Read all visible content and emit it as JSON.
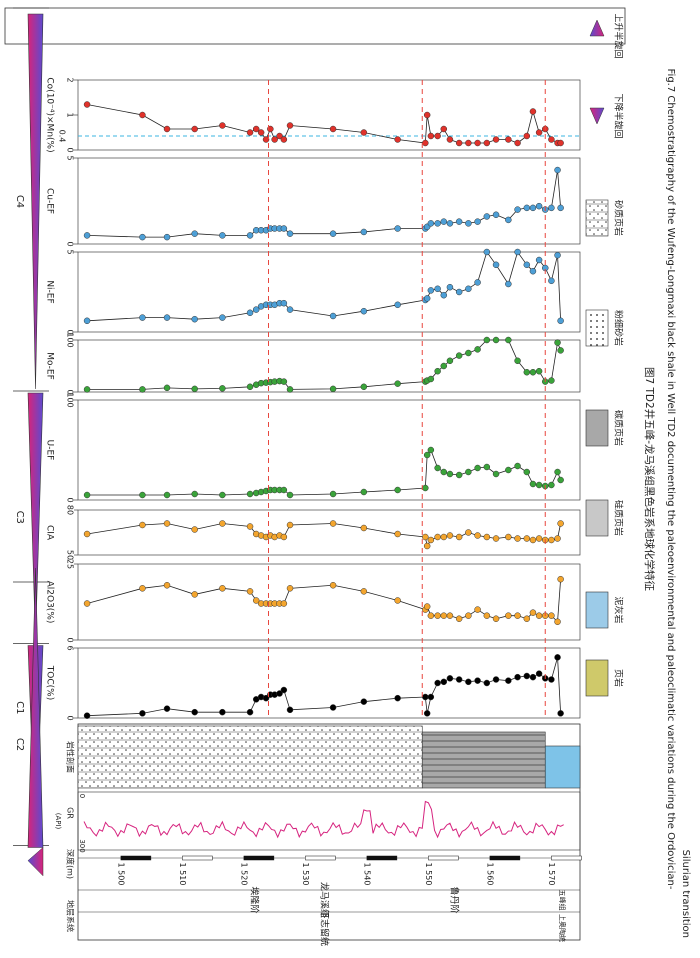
{
  "figure": {
    "caption_cn": "图7 TD2井五峰-龙马溪组黑色岩系地球化学特征",
    "caption_en_line1": "Fig.7 Chemostratigraphy of the Wufeng-Longmaxi black shale in Well TD2 documenting the paleoenvironmental and paleoclimatic variations during the Ordovician-",
    "caption_en_line2": "Silurian transition"
  },
  "strat_header": {
    "system": "地层系统",
    "depth": "深度(m)",
    "gr": "GR",
    "gr_unit": "(API)",
    "gr_range": [
      "0",
      "300"
    ],
    "lithology": "岩性剖面"
  },
  "strat_units": {
    "series": "下志留统",
    "stage1": "埃隆阶",
    "stage2": "鲁丹阶",
    "formation": "龙马溪组",
    "upper_ord": "上奥陶统",
    "hirnantian": "赫南特阶",
    "katian": "凯迪阶",
    "guanyinqiao": "观音桥段",
    "wufeng": "五峰组",
    "linxiang": "临湘组"
  },
  "cycles": {
    "labels": [
      "C4",
      "C3",
      "C2",
      "C1"
    ],
    "legend_down": "下降半旋回",
    "legend_up": "上升半旋回"
  },
  "legend": [
    "页岩",
    "泥灰岩",
    "硅质页岩",
    "碳质页岩",
    "粉细砂岩",
    "砂质页岩"
  ],
  "chart_data": {
    "type": "line",
    "orientation": "depth-profile",
    "depth_ticks": [
      1500,
      1510,
      1520,
      1530,
      1540,
      1550,
      1560,
      1570
    ],
    "depth_tick_labels": [
      "1 500",
      "1 510",
      "1 520",
      "1 530",
      "1 540",
      "1 550",
      "1 560",
      "1 570"
    ],
    "depth_unit": "m",
    "boundaries": [
      1524,
      1549,
      1569
    ],
    "gr_range": [
      0,
      300
    ],
    "depth": [
      1494.5,
      1503.5,
      1507.5,
      1512.0,
      1516.5,
      1521.0,
      1522.0,
      1522.8,
      1523.6,
      1524.3,
      1525.0,
      1525.8,
      1526.5,
      1527.5,
      1534.5,
      1539.5,
      1545.0,
      1549.5,
      1549.8,
      1550.4,
      1551.5,
      1552.5,
      1553.5,
      1555.0,
      1556.5,
      1558.0,
      1559.5,
      1561.0,
      1563.0,
      1564.5,
      1566.0,
      1567.0,
      1568.0,
      1569.0,
      1570.0,
      1571.0,
      1571.5
    ],
    "series": [
      {
        "name": "TOC(%)",
        "range": [
          0,
          6
        ],
        "ticks": [
          0,
          6
        ],
        "color": "#000000",
        "values": [
          0.2,
          0.4,
          0.8,
          0.5,
          0.5,
          0.5,
          1.6,
          1.8,
          1.7,
          2.0,
          2.0,
          2.1,
          2.4,
          0.7,
          0.9,
          1.4,
          1.7,
          1.8,
          0.4,
          1.8,
          3.0,
          3.1,
          3.4,
          3.3,
          3.1,
          3.2,
          3.0,
          3.3,
          3.2,
          3.5,
          3.6,
          3.5,
          3.8,
          3.4,
          3.3,
          5.2,
          0.4
        ]
      },
      {
        "name": "Al2O3(%)",
        "range": [
          0,
          25
        ],
        "ticks": [
          0,
          25
        ],
        "color": "#f3a52e",
        "values": [
          12,
          17,
          18,
          15,
          17,
          16,
          13,
          12,
          12,
          12,
          12,
          12,
          12,
          17,
          18,
          16,
          13,
          10,
          11,
          8,
          8,
          8,
          8,
          7,
          8,
          10,
          8,
          7,
          8,
          8,
          7,
          9,
          8,
          8,
          8,
          6,
          20
        ]
      },
      {
        "name": "CIA",
        "range": [
          50,
          80
        ],
        "ticks": [
          50,
          80
        ],
        "color": "#f3a52e",
        "values": [
          64,
          70,
          71,
          67,
          71,
          69,
          64,
          63,
          62,
          63,
          62,
          63,
          62,
          70,
          71,
          68,
          64,
          62,
          56,
          60,
          62,
          62,
          63,
          62,
          65,
          63,
          62,
          61,
          62,
          61,
          61,
          60,
          61,
          60,
          60,
          61,
          71
        ]
      },
      {
        "name": "U-EF",
        "range": [
          0,
          100
        ],
        "ticks": [
          0,
          100
        ],
        "color": "#3aa33a",
        "values": [
          5,
          5,
          5,
          6,
          5,
          6,
          7,
          8,
          9,
          10,
          10,
          10,
          10,
          5,
          6,
          8,
          10,
          12,
          45,
          50,
          32,
          28,
          26,
          25,
          28,
          32,
          33,
          26,
          30,
          34,
          28,
          16,
          15,
          14,
          15,
          28,
          20
        ]
      },
      {
        "name": "Mo-EF",
        "range": [
          0,
          100
        ],
        "ticks": [
          0,
          100
        ],
        "color": "#3aa33a",
        "values": [
          5,
          5,
          8,
          6,
          7,
          10,
          14,
          17,
          18,
          19,
          20,
          21,
          20,
          5,
          6,
          10,
          16,
          20,
          22,
          25,
          40,
          50,
          60,
          70,
          75,
          82,
          100,
          100,
          100,
          60,
          38,
          38,
          40,
          20,
          22,
          95,
          80
        ]
      },
      {
        "name": "Ni-EF",
        "range": [
          0,
          5
        ],
        "ticks": [
          0,
          5
        ],
        "color": "#4d9fd6",
        "values": [
          0.7,
          0.9,
          0.9,
          0.8,
          0.9,
          1.2,
          1.4,
          1.6,
          1.7,
          1.7,
          1.7,
          1.8,
          1.8,
          1.4,
          1.0,
          1.3,
          1.7,
          2.0,
          2.1,
          2.6,
          2.7,
          2.3,
          2.8,
          2.5,
          2.7,
          3.1,
          5.0,
          4.2,
          3.0,
          5.0,
          4.2,
          3.8,
          4.5,
          4.0,
          3.2,
          4.8,
          0.7
        ]
      },
      {
        "name": "Cu-EF",
        "range": [
          0,
          5
        ],
        "ticks": [
          0,
          5
        ],
        "color": "#4d9fd6",
        "values": [
          0.5,
          0.4,
          0.4,
          0.6,
          0.5,
          0.5,
          0.8,
          0.8,
          0.8,
          0.9,
          0.9,
          0.9,
          0.9,
          0.6,
          0.6,
          0.7,
          0.9,
          0.9,
          1.0,
          1.2,
          1.2,
          1.3,
          1.2,
          1.3,
          1.2,
          1.3,
          1.6,
          1.7,
          1.4,
          2.0,
          2.1,
          2.1,
          2.2,
          2.0,
          2.1,
          4.3,
          2.1
        ]
      },
      {
        "name": "Co(10⁻⁴)×Mn(%)",
        "range": [
          0,
          2
        ],
        "ticks": [
          0,
          1,
          2
        ],
        "ref": 0.4,
        "ref_label": "0.4",
        "color": "#e0322b",
        "values": [
          1.3,
          1.0,
          0.6,
          0.6,
          0.7,
          0.5,
          0.6,
          0.5,
          0.3,
          0.6,
          0.3,
          0.4,
          0.3,
          0.7,
          0.6,
          0.5,
          0.3,
          0.2,
          1.0,
          0.4,
          0.4,
          0.6,
          0.3,
          0.2,
          0.2,
          0.2,
          0.2,
          0.3,
          0.3,
          0.2,
          0.4,
          1.1,
          0.5,
          0.6,
          0.3,
          0.2,
          0.2
        ]
      }
    ]
  }
}
